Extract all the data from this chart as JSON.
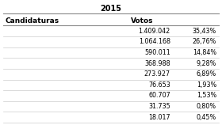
{
  "title": "2015",
  "col1_header": "Candidaturas",
  "col2_header": "Votos",
  "rows": [
    [
      "",
      "1.409.042",
      "35,43%"
    ],
    [
      "",
      "1.064.168",
      "26,76%"
    ],
    [
      "",
      "590.011",
      "14,84%"
    ],
    [
      "",
      "368.988",
      "9,28%"
    ],
    [
      "",
      "273.927",
      "6,89%"
    ],
    [
      "",
      "76.653",
      "1,93%"
    ],
    [
      "",
      "60.707",
      "1,53%"
    ],
    [
      "",
      "31.735",
      "0,80%"
    ],
    [
      "",
      "18.017",
      "0,45%"
    ]
  ],
  "bg_color": "#ffffff",
  "row_line_color": "#cccccc",
  "header_line_color": "#888888",
  "text_color": "#000000",
  "title_fontsize": 7,
  "header_fontsize": 6.5,
  "data_fontsize": 5.8
}
